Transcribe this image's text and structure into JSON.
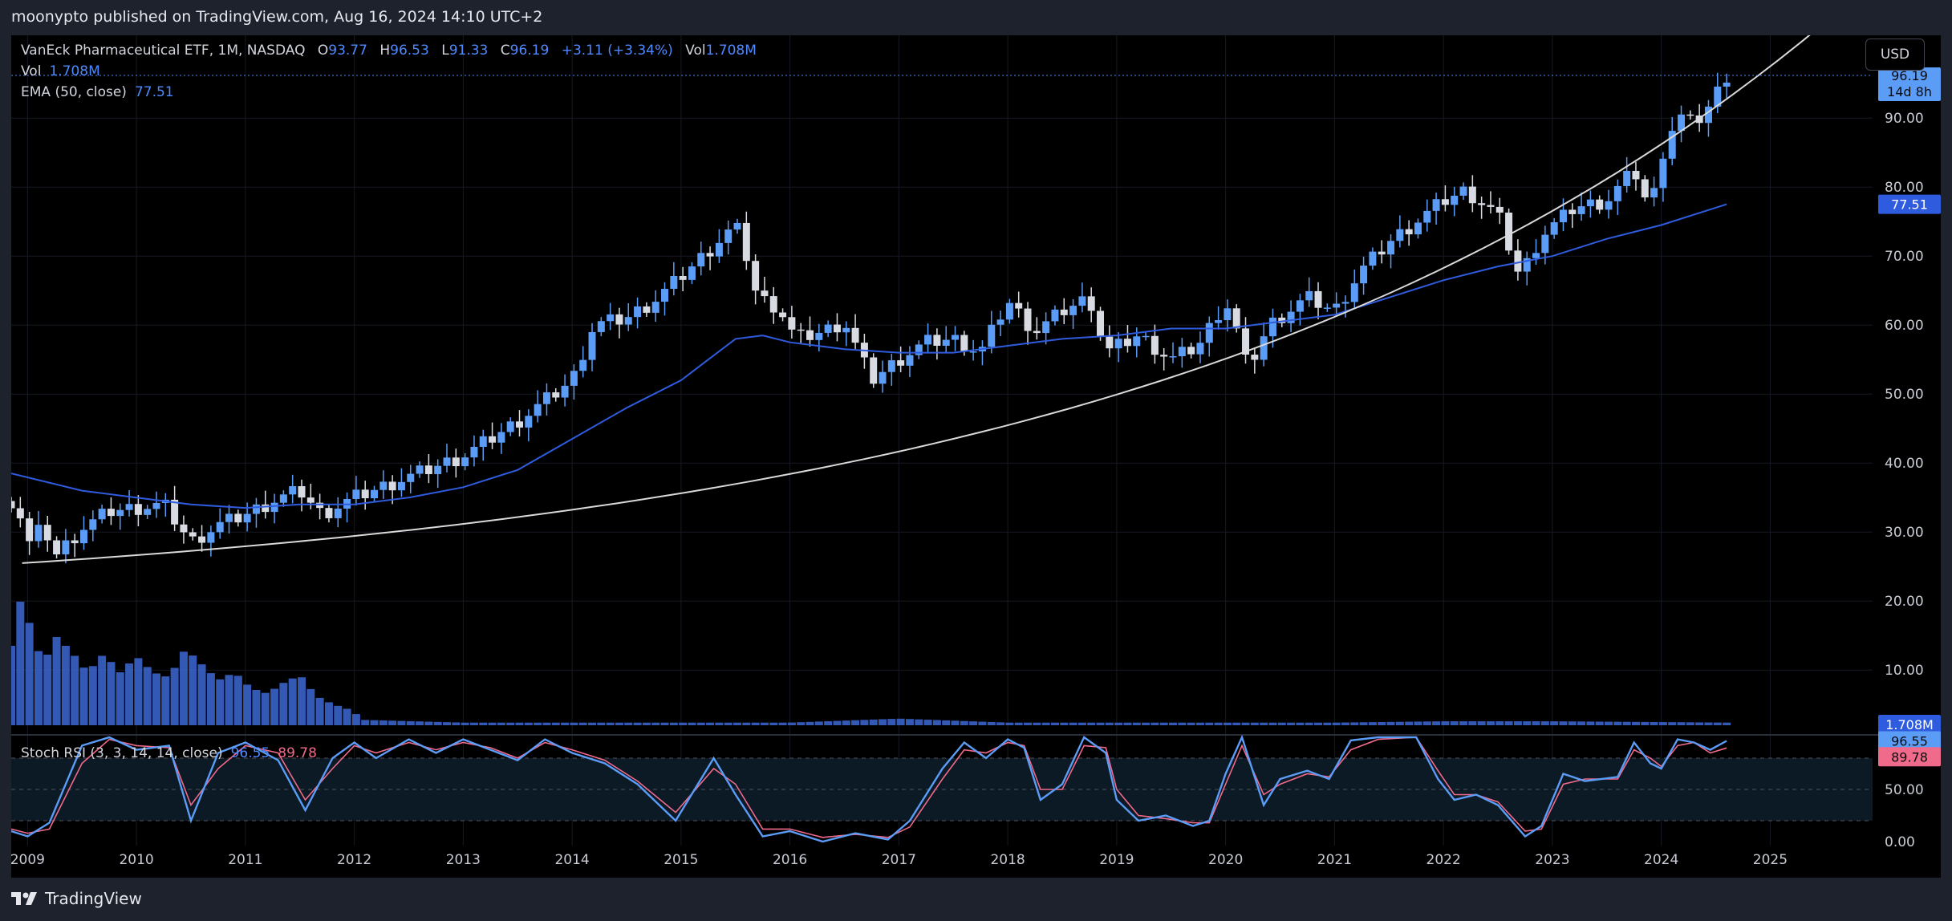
{
  "header": {
    "published": "moonypto published on TradingView.com, Aug 16, 2024 14:10 UTC+2"
  },
  "footer": {
    "brand": "TradingView"
  },
  "legend": {
    "symbol": "VanEck Pharmaceutical ETF, 1M, NASDAQ",
    "o_label": "O",
    "o_value": "93.77",
    "h_label": "H",
    "h_value": "96.53",
    "l_label": "L",
    "l_value": "91.33",
    "c_label": "C",
    "c_value": "96.19",
    "change": "+3.11 (+3.34%)",
    "vol_label": "Vol",
    "vol_value": "1.708M",
    "vol_line_label": "Vol",
    "vol_line_value": "1.708M",
    "ema_label": "EMA (50, close)",
    "ema_value": "77.51"
  },
  "rsi_legend": {
    "label": "Stoch RSI (3, 3, 14, 14, close)",
    "k_value": "96.55",
    "d_value": "89.78"
  },
  "currency_button": "USD",
  "badges": {
    "price": "96.19",
    "countdown": "14d 8h",
    "ema": "77.51",
    "volume": "1.708M",
    "rsi_k": "96.55",
    "rsi_d": "89.78"
  },
  "colors": {
    "up": "#5b9cf6",
    "down": "#d8dbe2",
    "ema": "#2f5cdf",
    "trend": "#d9d9d9",
    "volume": "#3a63c9",
    "rsi_k": "#5b9cf6",
    "rsi_d": "#f06a8c",
    "background": "#000000"
  },
  "chart_data": {
    "type": "candlestick",
    "interval": "1M",
    "price_axis": {
      "ticks": [
        "90.00",
        "80.00",
        "70.00",
        "60.00",
        "50.00",
        "40.00",
        "30.00",
        "20.00",
        "10.00"
      ],
      "ylim": [
        2,
        102
      ]
    },
    "rsi_axis": {
      "ticks": [
        "50.00",
        "0.00"
      ],
      "levels": [
        80,
        20
      ]
    },
    "x_axis": {
      "ticks": [
        "2009",
        "2010",
        "2011",
        "2012",
        "2013",
        "2014",
        "2015",
        "2016",
        "2017",
        "2018",
        "2019",
        "2020",
        "2021",
        "2022",
        "2023",
        "2024",
        "2025"
      ]
    },
    "close_path": [
      [
        2008.9,
        34.5
      ],
      [
        2009.0,
        28.0
      ],
      [
        2009.15,
        31.0
      ],
      [
        2009.25,
        26.5
      ],
      [
        2009.5,
        30.5
      ],
      [
        2009.75,
        33.0
      ],
      [
        2010.0,
        33.5
      ],
      [
        2010.25,
        34.0
      ],
      [
        2010.5,
        28.5
      ],
      [
        2010.75,
        31.0
      ],
      [
        2011.0,
        32.5
      ],
      [
        2011.25,
        34.5
      ],
      [
        2011.5,
        36.0
      ],
      [
        2011.7,
        32.5
      ],
      [
        2012.0,
        35.0
      ],
      [
        2012.5,
        38.0
      ],
      [
        2013.0,
        41.0
      ],
      [
        2013.5,
        46.0
      ],
      [
        2014.0,
        52.0
      ],
      [
        2014.2,
        60.0
      ],
      [
        2014.5,
        61.0
      ],
      [
        2014.75,
        63.5
      ],
      [
        2015.0,
        67.0
      ],
      [
        2015.3,
        71.5
      ],
      [
        2015.5,
        74.5
      ],
      [
        2015.6,
        70.0
      ],
      [
        2015.7,
        64.0
      ],
      [
        2015.9,
        62.5
      ],
      [
        2016.05,
        58.0
      ],
      [
        2016.3,
        59.0
      ],
      [
        2016.5,
        60.5
      ],
      [
        2016.75,
        52.0
      ],
      [
        2017.0,
        55.0
      ],
      [
        2017.25,
        57.5
      ],
      [
        2017.5,
        58.0
      ],
      [
        2017.75,
        56.0
      ],
      [
        2018.0,
        63.5
      ],
      [
        2018.25,
        59.0
      ],
      [
        2018.5,
        62.0
      ],
      [
        2018.75,
        64.0
      ],
      [
        2018.9,
        56.0
      ],
      [
        2019.2,
        58.5
      ],
      [
        2019.5,
        55.0
      ],
      [
        2019.75,
        57.0
      ],
      [
        2020.0,
        63.5
      ],
      [
        2020.15,
        57.0
      ],
      [
        2020.2,
        53.5
      ],
      [
        2020.4,
        60.0
      ],
      [
        2020.75,
        64.0
      ],
      [
        2021.0,
        62.0
      ],
      [
        2021.25,
        68.0
      ],
      [
        2021.5,
        72.0
      ],
      [
        2021.75,
        75.0
      ],
      [
        2022.0,
        78.0
      ],
      [
        2022.2,
        79.5
      ],
      [
        2022.5,
        76.0
      ],
      [
        2022.7,
        67.0
      ],
      [
        2022.9,
        73.0
      ],
      [
        2023.2,
        77.0
      ],
      [
        2023.5,
        78.0
      ],
      [
        2023.75,
        82.5
      ],
      [
        2023.9,
        76.5
      ],
      [
        2024.0,
        84.5
      ],
      [
        2024.15,
        90.5
      ],
      [
        2024.3,
        89.0
      ],
      [
        2024.45,
        92.0
      ],
      [
        2024.6,
        96.19
      ]
    ],
    "ema_path": [
      [
        2008.85,
        38.5
      ],
      [
        2009.5,
        36.0
      ],
      [
        2010.0,
        35.0
      ],
      [
        2010.5,
        34.0
      ],
      [
        2011.0,
        33.5
      ],
      [
        2011.5,
        34.0
      ],
      [
        2012.0,
        34.0
      ],
      [
        2012.5,
        35.0
      ],
      [
        2013.0,
        36.5
      ],
      [
        2013.5,
        39.0
      ],
      [
        2014.0,
        43.5
      ],
      [
        2014.5,
        48.0
      ],
      [
        2015.0,
        52.0
      ],
      [
        2015.25,
        55.0
      ],
      [
        2015.5,
        58.0
      ],
      [
        2015.75,
        58.5
      ],
      [
        2016.0,
        57.5
      ],
      [
        2016.5,
        56.5
      ],
      [
        2017.0,
        56.0
      ],
      [
        2017.5,
        56.0
      ],
      [
        2018.0,
        57.0
      ],
      [
        2018.5,
        58.0
      ],
      [
        2019.0,
        58.5
      ],
      [
        2019.5,
        59.5
      ],
      [
        2020.0,
        59.5
      ],
      [
        2020.5,
        60.5
      ],
      [
        2021.0,
        61.5
      ],
      [
        2021.5,
        64.0
      ],
      [
        2022.0,
        66.5
      ],
      [
        2022.5,
        68.5
      ],
      [
        2023.0,
        70.0
      ],
      [
        2023.5,
        72.5
      ],
      [
        2024.0,
        74.5
      ],
      [
        2024.6,
        77.51
      ]
    ],
    "trendline": {
      "x_start": 2008.95,
      "y_start": 25.5,
      "x_end": 2025.7,
      "y_end": 106.5,
      "curvature": 2.6
    },
    "volume_relative": [
      [
        2008.85,
        0.3
      ],
      [
        2008.95,
        0.5
      ],
      [
        2009.05,
        0.33
      ],
      [
        2009.15,
        0.23
      ],
      [
        2009.25,
        0.34
      ],
      [
        2009.4,
        0.28
      ],
      [
        2009.55,
        0.2
      ],
      [
        2009.7,
        0.27
      ],
      [
        2009.85,
        0.2
      ],
      [
        2010.0,
        0.26
      ],
      [
        2010.15,
        0.2
      ],
      [
        2010.3,
        0.18
      ],
      [
        2010.45,
        0.29
      ],
      [
        2010.6,
        0.23
      ],
      [
        2010.75,
        0.17
      ],
      [
        2010.9,
        0.2
      ],
      [
        2011.05,
        0.14
      ],
      [
        2011.2,
        0.12
      ],
      [
        2011.35,
        0.16
      ],
      [
        2011.5,
        0.19
      ],
      [
        2011.65,
        0.11
      ],
      [
        2011.8,
        0.08
      ],
      [
        2011.95,
        0.06
      ],
      [
        2012.1,
        0.02
      ],
      [
        2013.0,
        0.01
      ],
      [
        2014.0,
        0.01
      ],
      [
        2015.0,
        0.01
      ],
      [
        2016.0,
        0.01
      ],
      [
        2017.0,
        0.025
      ],
      [
        2018.0,
        0.01
      ],
      [
        2019.0,
        0.01
      ],
      [
        2020.0,
        0.01
      ],
      [
        2021.0,
        0.01
      ],
      [
        2022.0,
        0.015
      ],
      [
        2023.0,
        0.015
      ],
      [
        2024.0,
        0.012
      ],
      [
        2024.6,
        0.01
      ]
    ],
    "stoch_rsi_k": [
      [
        2008.85,
        10
      ],
      [
        2009.0,
        5
      ],
      [
        2009.2,
        18
      ],
      [
        2009.5,
        92
      ],
      [
        2009.75,
        100
      ],
      [
        2010.0,
        88
      ],
      [
        2010.3,
        92
      ],
      [
        2010.5,
        20
      ],
      [
        2010.75,
        85
      ],
      [
        2011.0,
        95
      ],
      [
        2011.3,
        78
      ],
      [
        2011.55,
        30
      ],
      [
        2011.8,
        80
      ],
      [
        2012.0,
        95
      ],
      [
        2012.2,
        80
      ],
      [
        2012.5,
        98
      ],
      [
        2012.75,
        85
      ],
      [
        2013.0,
        98
      ],
      [
        2013.25,
        88
      ],
      [
        2013.5,
        78
      ],
      [
        2013.75,
        98
      ],
      [
        2014.0,
        85
      ],
      [
        2014.3,
        75
      ],
      [
        2014.6,
        55
      ],
      [
        2014.95,
        20
      ],
      [
        2015.3,
        80
      ],
      [
        2015.5,
        45
      ],
      [
        2015.75,
        5
      ],
      [
        2016.0,
        10
      ],
      [
        2016.3,
        0
      ],
      [
        2016.6,
        8
      ],
      [
        2016.9,
        2
      ],
      [
        2017.1,
        20
      ],
      [
        2017.4,
        70
      ],
      [
        2017.6,
        95
      ],
      [
        2017.8,
        80
      ],
      [
        2018.0,
        98
      ],
      [
        2018.15,
        90
      ],
      [
        2018.3,
        40
      ],
      [
        2018.5,
        55
      ],
      [
        2018.7,
        100
      ],
      [
        2018.9,
        85
      ],
      [
        2019.0,
        40
      ],
      [
        2019.2,
        20
      ],
      [
        2019.45,
        25
      ],
      [
        2019.7,
        15
      ],
      [
        2019.85,
        20
      ],
      [
        2020.0,
        65
      ],
      [
        2020.15,
        100
      ],
      [
        2020.35,
        35
      ],
      [
        2020.5,
        60
      ],
      [
        2020.75,
        68
      ],
      [
        2020.95,
        60
      ],
      [
        2021.15,
        97
      ],
      [
        2021.4,
        100
      ],
      [
        2021.75,
        100
      ],
      [
        2021.95,
        60
      ],
      [
        2022.1,
        40
      ],
      [
        2022.3,
        45
      ],
      [
        2022.5,
        35
      ],
      [
        2022.75,
        5
      ],
      [
        2022.9,
        15
      ],
      [
        2023.1,
        65
      ],
      [
        2023.3,
        58
      ],
      [
        2023.6,
        62
      ],
      [
        2023.75,
        95
      ],
      [
        2023.9,
        75
      ],
      [
        2024.0,
        70
      ],
      [
        2024.15,
        98
      ],
      [
        2024.3,
        95
      ],
      [
        2024.45,
        88
      ],
      [
        2024.6,
        96.55
      ]
    ],
    "stoch_rsi_d": [
      [
        2008.85,
        12
      ],
      [
        2009.0,
        8
      ],
      [
        2009.2,
        12
      ],
      [
        2009.5,
        75
      ],
      [
        2009.75,
        98
      ],
      [
        2010.0,
        92
      ],
      [
        2010.3,
        90
      ],
      [
        2010.5,
        35
      ],
      [
        2010.75,
        70
      ],
      [
        2011.0,
        92
      ],
      [
        2011.3,
        85
      ],
      [
        2011.55,
        40
      ],
      [
        2011.8,
        70
      ],
      [
        2012.0,
        92
      ],
      [
        2012.2,
        85
      ],
      [
        2012.5,
        95
      ],
      [
        2012.75,
        88
      ],
      [
        2013.0,
        95
      ],
      [
        2013.25,
        90
      ],
      [
        2013.5,
        80
      ],
      [
        2013.75,
        95
      ],
      [
        2014.0,
        88
      ],
      [
        2014.3,
        78
      ],
      [
        2014.6,
        58
      ],
      [
        2014.95,
        28
      ],
      [
        2015.3,
        70
      ],
      [
        2015.5,
        55
      ],
      [
        2015.75,
        12
      ],
      [
        2016.0,
        12
      ],
      [
        2016.3,
        4
      ],
      [
        2016.6,
        7
      ],
      [
        2016.9,
        4
      ],
      [
        2017.1,
        14
      ],
      [
        2017.4,
        60
      ],
      [
        2017.6,
        88
      ],
      [
        2017.8,
        85
      ],
      [
        2018.0,
        95
      ],
      [
        2018.15,
        92
      ],
      [
        2018.3,
        50
      ],
      [
        2018.5,
        50
      ],
      [
        2018.7,
        92
      ],
      [
        2018.9,
        90
      ],
      [
        2019.0,
        50
      ],
      [
        2019.2,
        25
      ],
      [
        2019.45,
        22
      ],
      [
        2019.7,
        18
      ],
      [
        2019.85,
        18
      ],
      [
        2020.0,
        55
      ],
      [
        2020.15,
        92
      ],
      [
        2020.35,
        45
      ],
      [
        2020.5,
        55
      ],
      [
        2020.75,
        65
      ],
      [
        2020.95,
        62
      ],
      [
        2021.15,
        88
      ],
      [
        2021.4,
        98
      ],
      [
        2021.75,
        100
      ],
      [
        2021.95,
        68
      ],
      [
        2022.1,
        45
      ],
      [
        2022.3,
        45
      ],
      [
        2022.5,
        38
      ],
      [
        2022.75,
        10
      ],
      [
        2022.9,
        12
      ],
      [
        2023.1,
        55
      ],
      [
        2023.3,
        60
      ],
      [
        2023.6,
        60
      ],
      [
        2023.75,
        88
      ],
      [
        2023.9,
        80
      ],
      [
        2024.0,
        72
      ],
      [
        2024.15,
        92
      ],
      [
        2024.3,
        95
      ],
      [
        2024.45,
        85
      ],
      [
        2024.6,
        89.78
      ]
    ]
  }
}
